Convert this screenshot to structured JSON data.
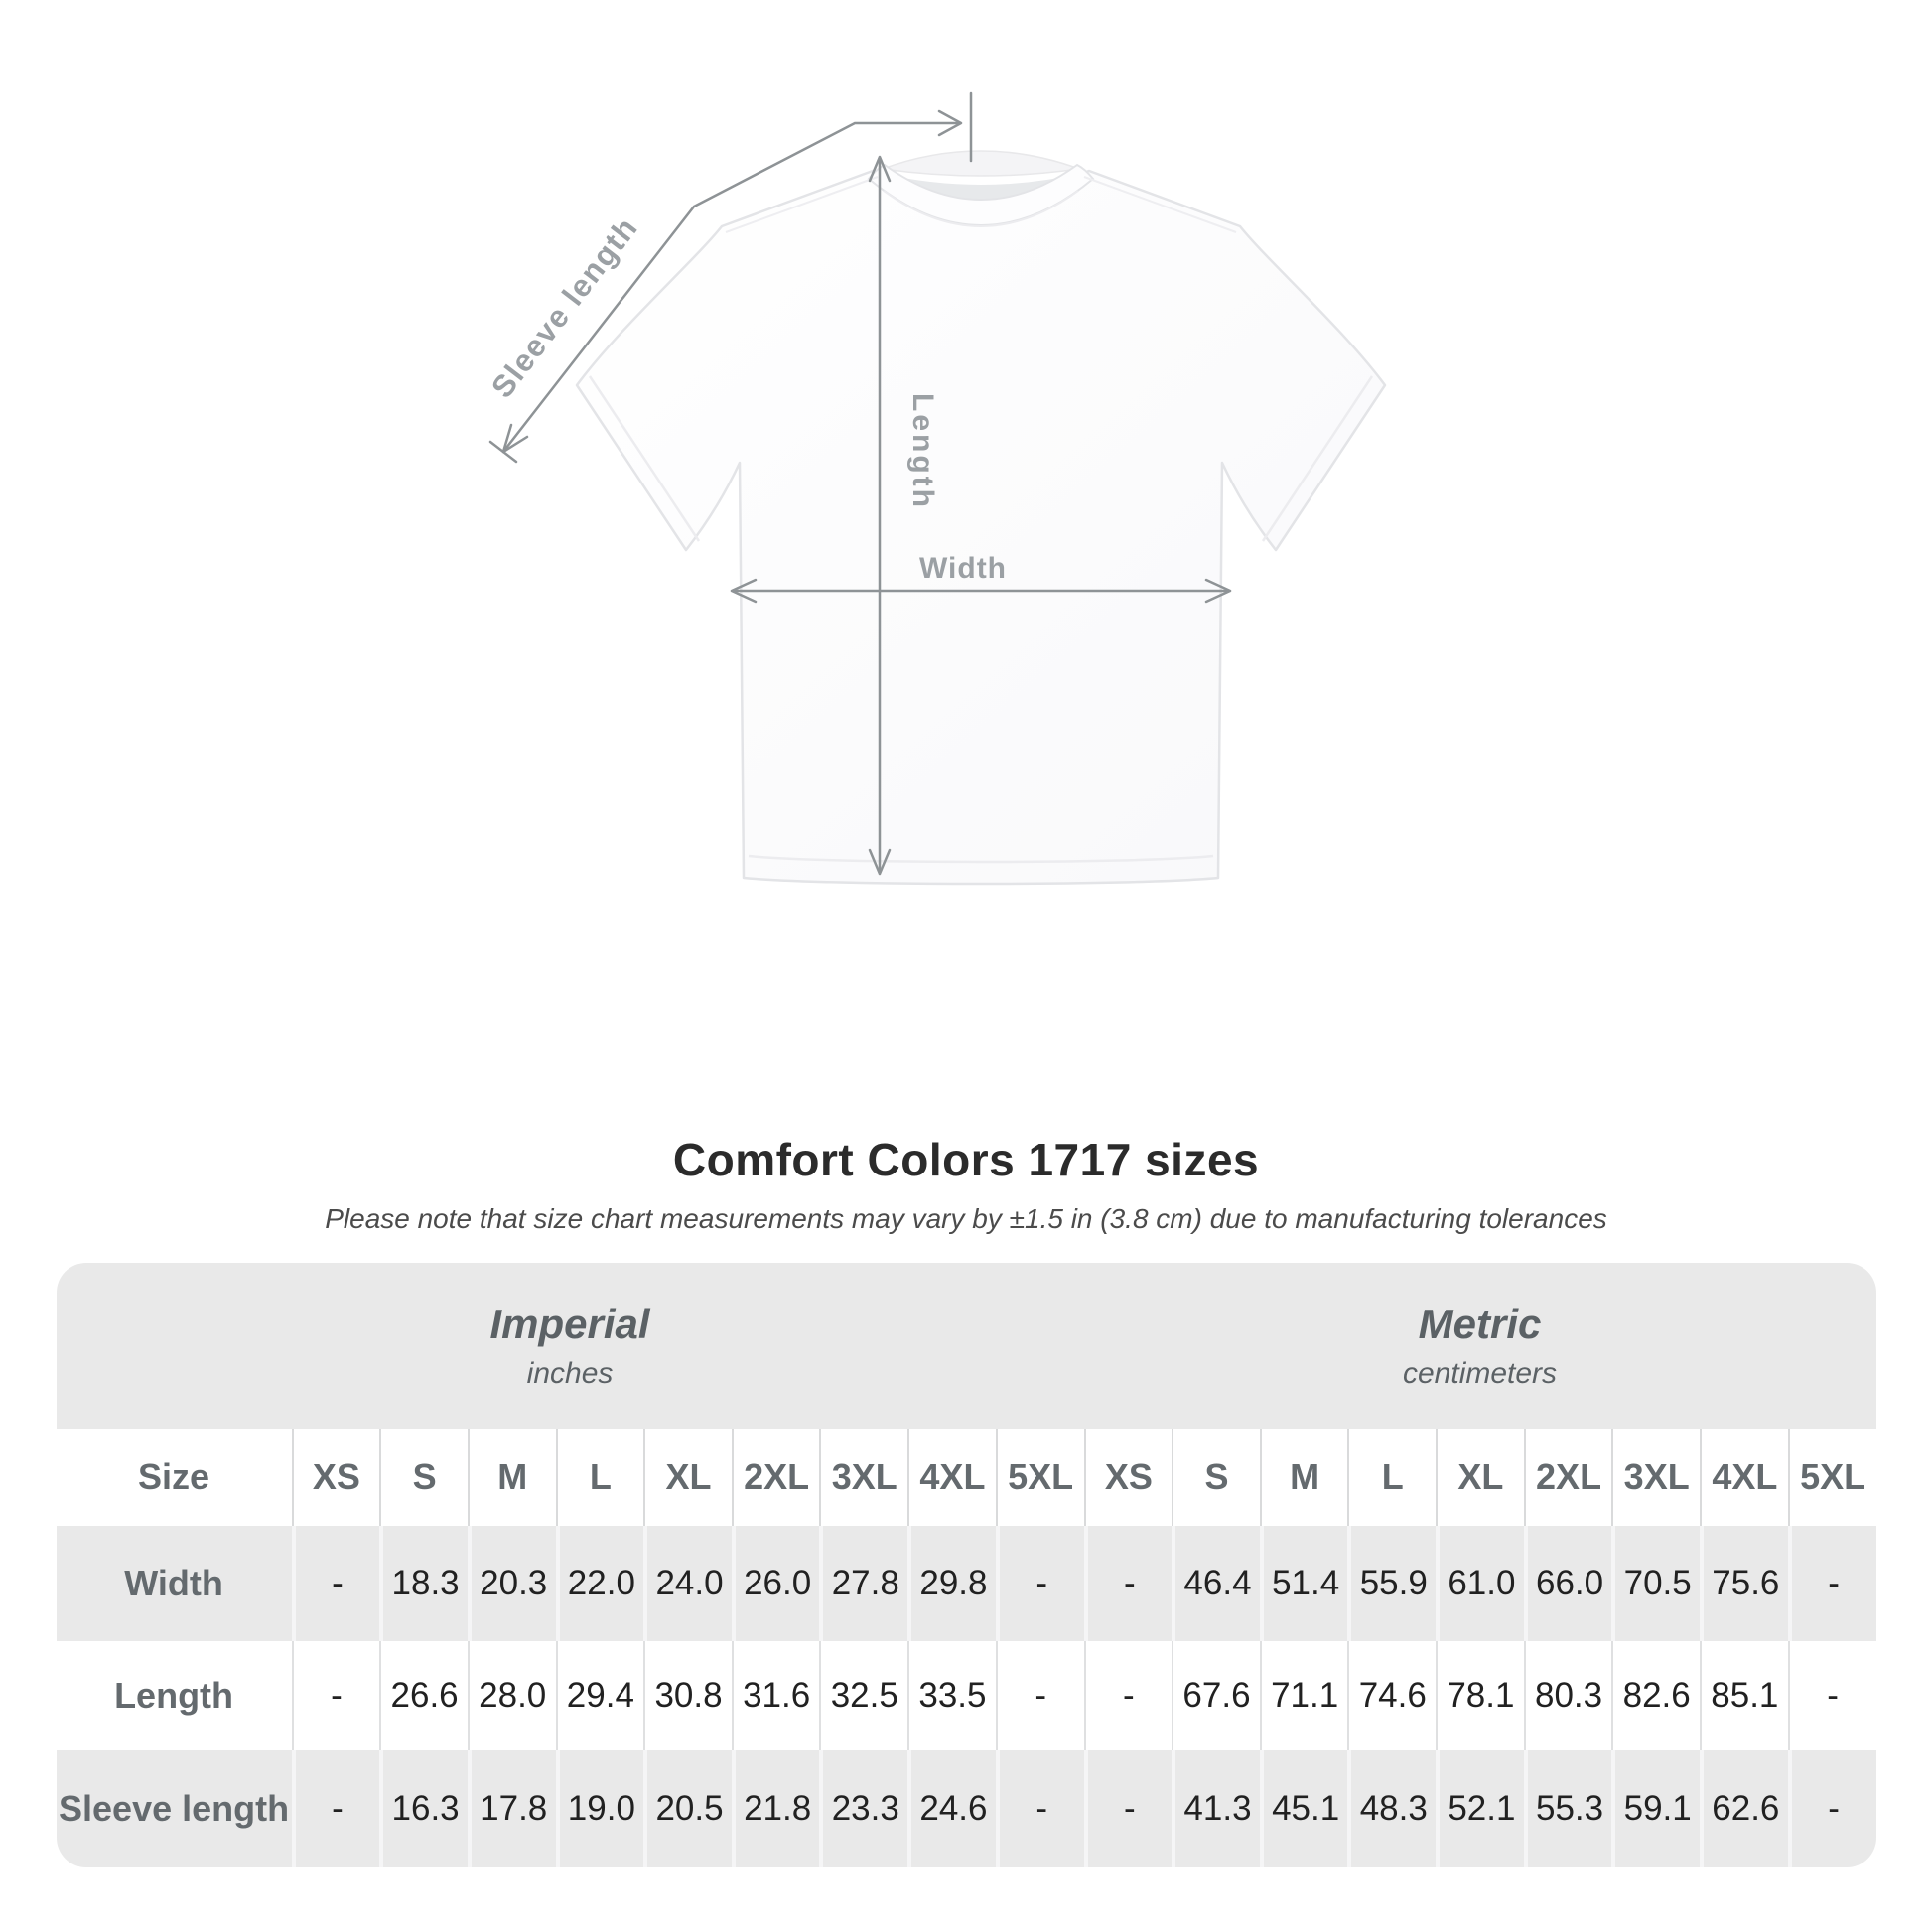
{
  "diagram": {
    "labels": {
      "sleeve_length": "Sleeve length",
      "length": "Length",
      "width": "Width"
    },
    "line_color": "#8e9396",
    "label_color": "#9ba0a4"
  },
  "header": {
    "title": "Comfort Colors 1717 sizes",
    "subtitle": "Please note that size chart measurements may vary by ±1.5 in (3.8 cm) due to manufacturing tolerances"
  },
  "chart_data": {
    "type": "table",
    "title": "Comfort Colors 1717 sizes",
    "size_col_header": "Size",
    "groups": [
      {
        "label": "Imperial",
        "unit": "inches"
      },
      {
        "label": "Metric",
        "unit": "centimeters"
      }
    ],
    "sizes": [
      "XS",
      "S",
      "M",
      "L",
      "XL",
      "2XL",
      "3XL",
      "4XL",
      "5XL"
    ],
    "rows": [
      {
        "label": "Width",
        "imperial": [
          "-",
          "18.3",
          "20.3",
          "22.0",
          "24.0",
          "26.0",
          "27.8",
          "29.8",
          "-"
        ],
        "metric": [
          "-",
          "46.4",
          "51.4",
          "55.9",
          "61.0",
          "66.0",
          "70.5",
          "75.6",
          "-"
        ]
      },
      {
        "label": "Length",
        "imperial": [
          "-",
          "26.6",
          "28.0",
          "29.4",
          "30.8",
          "31.6",
          "32.5",
          "33.5",
          "-"
        ],
        "metric": [
          "-",
          "67.6",
          "71.1",
          "74.6",
          "78.1",
          "80.3",
          "82.6",
          "85.1",
          "-"
        ]
      },
      {
        "label": "Sleeve length",
        "imperial": [
          "-",
          "16.3",
          "17.8",
          "19.0",
          "20.5",
          "21.8",
          "23.3",
          "24.6",
          "-"
        ],
        "metric": [
          "-",
          "41.3",
          "45.1",
          "48.3",
          "52.1",
          "55.3",
          "59.1",
          "62.6",
          "-"
        ]
      }
    ]
  },
  "colors": {
    "table_band_gray": "#e9e9e9",
    "separator_on_white": "#dfe0e1",
    "separator_on_gray": "#f5f5f6",
    "value_text": "#212121",
    "label_text": "#646a6e",
    "group_text": "#5b6165",
    "title_text": "#2b2b2b"
  }
}
